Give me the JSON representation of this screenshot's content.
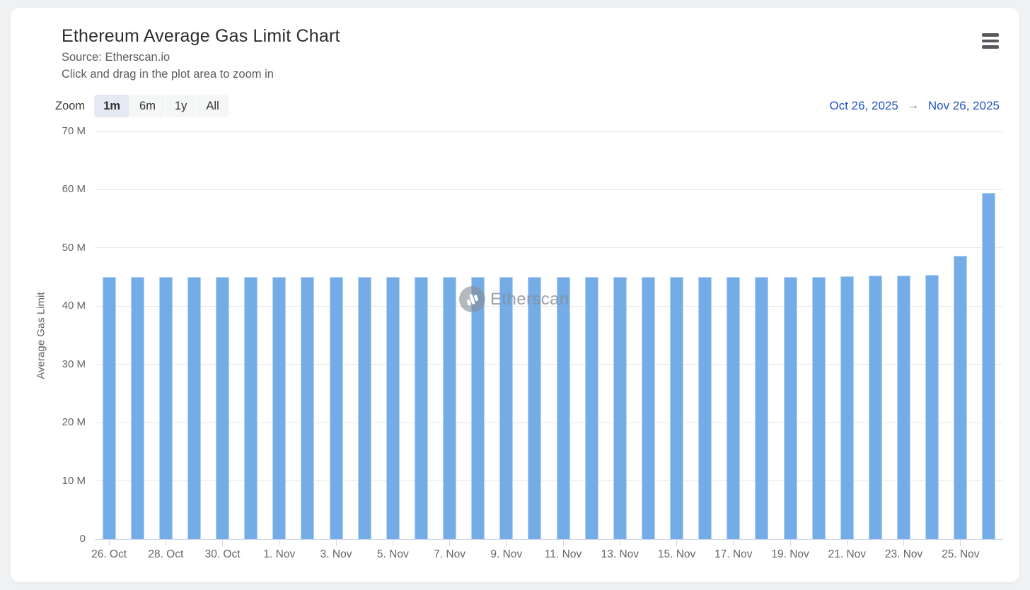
{
  "header": {
    "title": "Ethereum Average Gas Limit Chart",
    "subtitle_source": "Source: Etherscan.io",
    "subtitle_hint": "Click and drag in the plot area to zoom in"
  },
  "range_selector": {
    "zoom_label": "Zoom",
    "buttons": [
      {
        "label": "1m",
        "selected": true
      },
      {
        "label": "6m",
        "selected": false
      },
      {
        "label": "1y",
        "selected": false
      },
      {
        "label": "All",
        "selected": false
      }
    ],
    "from_date": "Oct 26, 2025",
    "arrow": "→",
    "to_date": "Nov 26, 2025"
  },
  "watermark": {
    "text": "Etherscan",
    "icon": "etherscan-logo"
  },
  "chart_data": {
    "type": "bar",
    "title": "Ethereum Average Gas Limit Chart",
    "xlabel": "",
    "ylabel": "Average Gas Limit",
    "ylim_millions": [
      0,
      70
    ],
    "grid": true,
    "bar_color": "#74ace7",
    "y_ticks": [
      {
        "v": 0,
        "label": "0"
      },
      {
        "v": 10,
        "label": "10 M"
      },
      {
        "v": 20,
        "label": "20 M"
      },
      {
        "v": 30,
        "label": "30 M"
      },
      {
        "v": 40,
        "label": "40 M"
      },
      {
        "v": 50,
        "label": "50 M"
      },
      {
        "v": 60,
        "label": "60 M"
      },
      {
        "v": 70,
        "label": "70 M"
      }
    ],
    "x_ticks": [
      {
        "i": 0,
        "label": "26. Oct"
      },
      {
        "i": 2,
        "label": "28. Oct"
      },
      {
        "i": 4,
        "label": "30. Oct"
      },
      {
        "i": 6,
        "label": "1. Nov"
      },
      {
        "i": 8,
        "label": "3. Nov"
      },
      {
        "i": 10,
        "label": "5. Nov"
      },
      {
        "i": 12,
        "label": "7. Nov"
      },
      {
        "i": 14,
        "label": "9. Nov"
      },
      {
        "i": 16,
        "label": "11. Nov"
      },
      {
        "i": 18,
        "label": "13. Nov"
      },
      {
        "i": 20,
        "label": "15. Nov"
      },
      {
        "i": 22,
        "label": "17. Nov"
      },
      {
        "i": 24,
        "label": "19. Nov"
      },
      {
        "i": 26,
        "label": "21. Nov"
      },
      {
        "i": 28,
        "label": "23. Nov"
      },
      {
        "i": 30,
        "label": "25. Nov"
      }
    ],
    "categories": [
      "26. Oct",
      "27. Oct",
      "28. Oct",
      "29. Oct",
      "30. Oct",
      "31. Oct",
      "1. Nov",
      "2. Nov",
      "3. Nov",
      "4. Nov",
      "5. Nov",
      "6. Nov",
      "7. Nov",
      "8. Nov",
      "9. Nov",
      "10. Nov",
      "11. Nov",
      "12. Nov",
      "13. Nov",
      "14. Nov",
      "15. Nov",
      "16. Nov",
      "17. Nov",
      "18. Nov",
      "19. Nov",
      "20. Nov",
      "21. Nov",
      "22. Nov",
      "23. Nov",
      "24. Nov",
      "25. Nov",
      "26. Nov"
    ],
    "values_millions": [
      45,
      45,
      45,
      45,
      45,
      45,
      45,
      45,
      45,
      45,
      45,
      45,
      45,
      45,
      45,
      45,
      45,
      45,
      45,
      45,
      45,
      45,
      45,
      45,
      45,
      45,
      45.1,
      45.2,
      45.2,
      45.4,
      48.6,
      59.4
    ]
  }
}
